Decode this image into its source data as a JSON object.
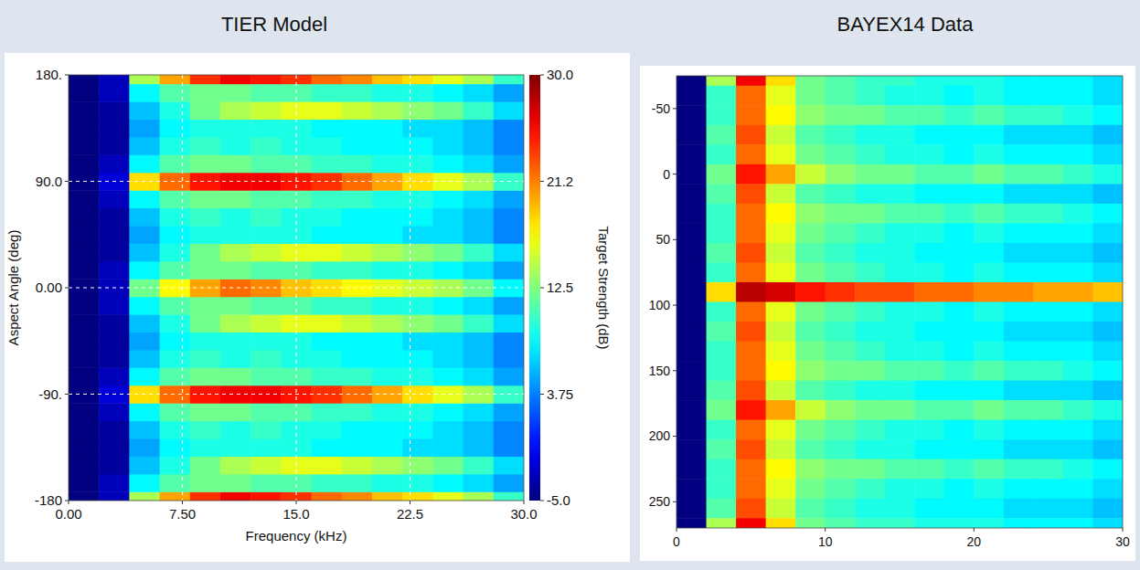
{
  "chart_data": [
    {
      "type": "heatmap",
      "title": "TIER Model",
      "x_label": "Frequency (kHz)",
      "y_label": "Aspect Angle (deg)",
      "color": "jet",
      "grid": true,
      "x": [
        1,
        3,
        5,
        7,
        9,
        11,
        13,
        15,
        17,
        19,
        21,
        23,
        25,
        27,
        29
      ],
      "y": [
        -180,
        -165,
        -150,
        -135,
        -120,
        -105,
        -90,
        -75,
        -60,
        -45,
        -30,
        -15,
        0,
        15,
        30,
        45,
        60,
        75,
        90,
        105,
        120,
        135,
        150,
        165,
        180
      ],
      "z": [
        [
          -5,
          -3,
          14,
          20,
          24,
          26,
          25,
          24,
          22,
          21,
          19,
          18,
          16,
          14,
          10
        ],
        [
          -5,
          -3,
          8,
          11,
          12,
          12,
          11,
          11,
          10,
          10,
          9,
          9,
          8,
          7,
          5
        ],
        [
          -5,
          -4,
          6,
          9,
          12,
          14,
          15,
          16,
          16,
          15,
          14,
          13,
          12,
          10,
          7
        ],
        [
          -5,
          -4,
          5,
          8,
          9,
          9,
          9,
          9,
          8,
          8,
          8,
          7,
          7,
          6,
          4
        ],
        [
          -5,
          -4,
          6,
          9,
          10,
          9,
          10,
          9,
          9,
          8,
          8,
          8,
          7,
          6,
          4
        ],
        [
          -5,
          -3,
          8,
          11,
          12,
          12,
          11,
          11,
          10,
          10,
          9,
          9,
          8,
          7,
          5
        ],
        [
          -5,
          -2,
          18,
          22,
          25,
          26,
          26,
          25,
          24,
          22,
          20,
          18,
          16,
          14,
          10
        ],
        [
          -5,
          -3,
          8,
          11,
          12,
          12,
          11,
          11,
          10,
          10,
          9,
          9,
          8,
          7,
          5
        ],
        [
          -5,
          -4,
          6,
          9,
          10,
          9,
          10,
          9,
          9,
          8,
          8,
          8,
          7,
          6,
          4
        ],
        [
          -5,
          -4,
          5,
          8,
          9,
          9,
          9,
          9,
          8,
          8,
          8,
          7,
          7,
          6,
          4
        ],
        [
          -5,
          -4,
          6,
          9,
          12,
          14,
          15,
          16,
          16,
          15,
          14,
          13,
          12,
          10,
          7
        ],
        [
          -5,
          -3,
          8,
          11,
          12,
          12,
          11,
          11,
          10,
          10,
          9,
          9,
          8,
          7,
          5
        ],
        [
          -5,
          -3,
          12,
          17,
          20,
          22,
          21,
          19,
          18,
          17,
          16,
          15,
          14,
          12,
          8
        ],
        [
          -5,
          -3,
          8,
          11,
          12,
          12,
          11,
          11,
          10,
          10,
          9,
          9,
          8,
          7,
          5
        ],
        [
          -5,
          -4,
          6,
          9,
          12,
          14,
          15,
          16,
          16,
          15,
          14,
          13,
          12,
          10,
          7
        ],
        [
          -5,
          -4,
          5,
          8,
          9,
          9,
          9,
          9,
          8,
          8,
          8,
          7,
          7,
          6,
          4
        ],
        [
          -5,
          -4,
          6,
          9,
          10,
          9,
          10,
          9,
          9,
          8,
          8,
          8,
          7,
          6,
          4
        ],
        [
          -5,
          -3,
          8,
          11,
          12,
          12,
          11,
          11,
          10,
          10,
          9,
          9,
          8,
          7,
          5
        ],
        [
          -5,
          -2,
          18,
          22,
          25,
          26,
          26,
          25,
          24,
          22,
          20,
          18,
          16,
          14,
          10
        ],
        [
          -5,
          -3,
          8,
          11,
          12,
          12,
          11,
          11,
          10,
          10,
          9,
          9,
          8,
          7,
          5
        ],
        [
          -5,
          -4,
          6,
          9,
          10,
          9,
          10,
          9,
          9,
          8,
          8,
          8,
          7,
          6,
          4
        ],
        [
          -5,
          -4,
          5,
          8,
          9,
          9,
          9,
          9,
          8,
          8,
          8,
          7,
          7,
          6,
          4
        ],
        [
          -5,
          -4,
          6,
          9,
          12,
          14,
          15,
          16,
          16,
          15,
          14,
          13,
          12,
          10,
          7
        ],
        [
          -5,
          -3,
          8,
          11,
          12,
          12,
          11,
          11,
          10,
          10,
          9,
          9,
          8,
          7,
          5
        ],
        [
          -5,
          -3,
          14,
          20,
          24,
          26,
          25,
          24,
          22,
          21,
          19,
          18,
          16,
          14,
          10
        ]
      ],
      "xlim": [
        0,
        30
      ],
      "ylim": [
        -180,
        180
      ],
      "xticks": [
        {
          "value": 0,
          "label": "0.00"
        },
        {
          "value": 7.5,
          "label": "7.50"
        },
        {
          "value": 15,
          "label": "15.0"
        },
        {
          "value": 22.5,
          "label": "22.5"
        },
        {
          "value": 30,
          "label": "30.0"
        }
      ],
      "yticks": [
        -180,
        {
          "value": -90,
          "label": "-90."
        },
        {
          "value": 0,
          "label": "0.00"
        },
        {
          "value": 90,
          "label": "90.0"
        },
        {
          "value": 180,
          "label": "180."
        }
      ],
      "z_range": [
        -5,
        30
      ],
      "colorbar_label": "Target Strength (dB)",
      "colorbar_ticks": [
        {
          "value": -5,
          "label": "-5.0"
        },
        3.75,
        12.5,
        {
          "value": 21.25,
          "label": "21.2"
        },
        {
          "value": 30,
          "label": "30.0"
        }
      ]
    },
    {
      "type": "heatmap",
      "title": "BAYEX14 Data",
      "color": "jet",
      "grid": false,
      "x": [
        1,
        3,
        5,
        7,
        9,
        11,
        13,
        15,
        17,
        19,
        21,
        23,
        25,
        27,
        29
      ],
      "y": [
        -75,
        -60,
        -45,
        -30,
        -15,
        0,
        15,
        30,
        45,
        60,
        75,
        90,
        105,
        120,
        135,
        150,
        165,
        180,
        195,
        210,
        225,
        240,
        255,
        270
      ],
      "z": [
        [
          -5,
          14,
          26,
          18,
          12,
          11,
          10,
          10,
          9,
          9,
          9,
          8,
          8,
          8,
          7
        ],
        [
          -5,
          10,
          22,
          16,
          12,
          11,
          10,
          9,
          9,
          8,
          9,
          8,
          8,
          8,
          7
        ],
        [
          -5,
          10,
          22,
          17,
          13,
          12,
          12,
          11,
          11,
          10,
          11,
          10,
          10,
          9,
          8
        ],
        [
          -5,
          11,
          23,
          15,
          11,
          10,
          9,
          9,
          8,
          8,
          8,
          7,
          7,
          7,
          6
        ],
        [
          -5,
          10,
          22,
          16,
          12,
          11,
          10,
          9,
          9,
          8,
          9,
          8,
          8,
          8,
          7
        ],
        [
          -5,
          12,
          25,
          20,
          15,
          13,
          12,
          12,
          11,
          11,
          12,
          11,
          11,
          10,
          9
        ],
        [
          -5,
          11,
          23,
          15,
          11,
          10,
          9,
          9,
          8,
          8,
          8,
          7,
          7,
          7,
          6
        ],
        [
          -5,
          10,
          22,
          17,
          13,
          12,
          12,
          11,
          11,
          10,
          11,
          10,
          10,
          9,
          8
        ],
        [
          -5,
          10,
          22,
          16,
          12,
          11,
          10,
          9,
          9,
          8,
          9,
          8,
          8,
          8,
          7
        ],
        [
          -5,
          11,
          23,
          15,
          11,
          10,
          9,
          9,
          8,
          8,
          8,
          7,
          7,
          7,
          6
        ],
        [
          -5,
          10,
          22,
          16,
          12,
          11,
          10,
          9,
          9,
          8,
          9,
          8,
          8,
          8,
          7
        ],
        [
          -5,
          18,
          28,
          27,
          25,
          24,
          23,
          23,
          22,
          22,
          21,
          21,
          20,
          20,
          19
        ],
        [
          -5,
          10,
          22,
          16,
          12,
          11,
          10,
          9,
          9,
          8,
          9,
          8,
          8,
          8,
          7
        ],
        [
          -5,
          11,
          23,
          15,
          11,
          10,
          9,
          9,
          8,
          8,
          8,
          7,
          7,
          7,
          6
        ],
        [
          -5,
          10,
          22,
          16,
          12,
          11,
          10,
          9,
          9,
          8,
          9,
          8,
          8,
          8,
          7
        ],
        [
          -5,
          10,
          22,
          17,
          13,
          12,
          12,
          11,
          11,
          10,
          11,
          10,
          10,
          9,
          8
        ],
        [
          -5,
          11,
          23,
          15,
          11,
          10,
          9,
          9,
          8,
          8,
          8,
          7,
          7,
          7,
          6
        ],
        [
          -5,
          12,
          25,
          20,
          15,
          13,
          12,
          12,
          11,
          11,
          12,
          11,
          11,
          10,
          9
        ],
        [
          -5,
          10,
          22,
          16,
          12,
          11,
          10,
          9,
          9,
          8,
          9,
          8,
          8,
          8,
          7
        ],
        [
          -5,
          11,
          23,
          15,
          11,
          10,
          9,
          9,
          8,
          8,
          8,
          7,
          7,
          7,
          6
        ],
        [
          -5,
          10,
          22,
          17,
          13,
          12,
          12,
          11,
          11,
          10,
          11,
          10,
          10,
          9,
          8
        ],
        [
          -5,
          10,
          22,
          16,
          12,
          11,
          10,
          9,
          9,
          8,
          9,
          8,
          8,
          8,
          7
        ],
        [
          -5,
          11,
          23,
          15,
          11,
          10,
          9,
          9,
          8,
          8,
          8,
          7,
          7,
          7,
          6
        ],
        [
          -5,
          14,
          26,
          18,
          12,
          11,
          10,
          10,
          9,
          9,
          9,
          8,
          8,
          8,
          7
        ]
      ],
      "xlim": [
        0,
        30
      ],
      "ylim": [
        270,
        -75
      ],
      "xticks": [
        0,
        10,
        20,
        30
      ],
      "yticks": [
        -50,
        0,
        50,
        100,
        150,
        200,
        250
      ],
      "z_range": [
        -5,
        30
      ]
    }
  ]
}
